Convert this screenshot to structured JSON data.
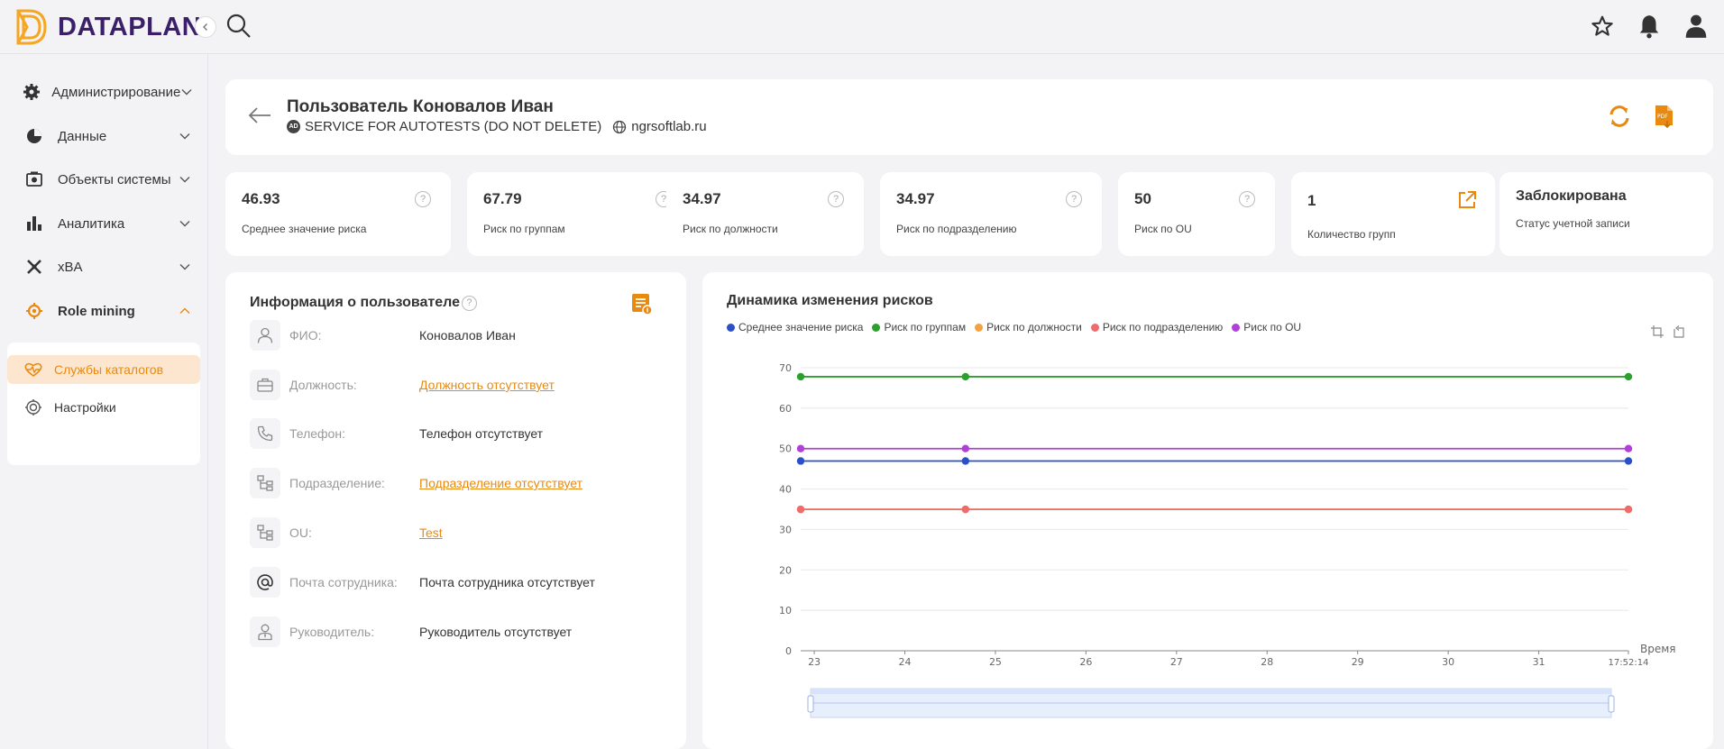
{
  "app": {
    "logo_text": "DATAPLAN"
  },
  "topbar": {
    "icons": [
      "search-icon",
      "star-icon",
      "bell-icon",
      "user-icon"
    ]
  },
  "sidebar": {
    "items": [
      {
        "label": "Администрирование",
        "icon": "gear-icon"
      },
      {
        "label": "Данные",
        "icon": "pie-icon"
      },
      {
        "label": "Объекты системы",
        "icon": "objects-icon"
      },
      {
        "label": "Аналитика",
        "icon": "bar-chart-icon"
      },
      {
        "label": "xBA",
        "icon": "xba-icon"
      },
      {
        "label": "Role mining",
        "icon": "role-mining-icon"
      }
    ],
    "submenu": [
      {
        "label": "Службы каталогов",
        "icon": "heartbeat-icon"
      },
      {
        "label": "Настройки",
        "icon": "settings-icon"
      }
    ]
  },
  "header": {
    "title": "Пользователь Коновалов Иван",
    "badge": "AD",
    "service": "SERVICE FOR AUTOTESTS (DO NOT DELETE)",
    "domain": "ngrsoftlab.ru"
  },
  "stats": [
    {
      "value": "46.93",
      "label": "Среднее значение риска"
    },
    {
      "value": "67.79",
      "label": "Риск по группам"
    },
    {
      "value": "34.97",
      "label": "Риск по должности"
    },
    {
      "value": "34.97",
      "label": "Риск по подразделению"
    },
    {
      "value": "50",
      "label": "Риск по OU"
    },
    {
      "value": "1",
      "label": "Количество групп"
    },
    {
      "value": "Заблокирована",
      "label": "Статус учетной записи"
    }
  ],
  "info": {
    "title": "Информация о пользователе",
    "help": "?",
    "rows": [
      {
        "key": "ФИО:",
        "value": "Коновалов Иван",
        "link": false,
        "icon": "person-icon"
      },
      {
        "key": "Должность:",
        "value": "Должность отсутствует",
        "link": true,
        "icon": "briefcase-icon"
      },
      {
        "key": "Телефон:",
        "value": "Телефон отсутствует",
        "link": false,
        "icon": "phone-icon"
      },
      {
        "key": "Подразделение:",
        "value": "Подразделение отсутствует",
        "link": true,
        "icon": "hierarchy-icon"
      },
      {
        "key": "OU:",
        "value": "Test",
        "link": true,
        "icon": "hierarchy-icon"
      },
      {
        "key": "Почта сотрудника:",
        "value": "Почта сотрудника отсутствует",
        "link": false,
        "icon": "at-icon"
      },
      {
        "key": "Руководитель:",
        "value": "Руководитель отсутствует",
        "link": false,
        "icon": "manager-icon"
      }
    ]
  },
  "chart_data": {
    "type": "line",
    "title": "Динамика изменения рисков",
    "xlabel": "Время",
    "ylabel": "",
    "ylim": [
      0,
      70
    ],
    "yticks": [
      0,
      10,
      20,
      30,
      40,
      50,
      60,
      70
    ],
    "xticks": [
      "23",
      "24",
      "25",
      "26",
      "27",
      "28",
      "29",
      "30",
      "31",
      "17:52:14"
    ],
    "x": [
      22.85,
      24.67,
      31.99
    ],
    "grid": true,
    "legend_position": "top-left",
    "series": [
      {
        "name": "Среднее значение риска",
        "color": "#2b4fc7",
        "values": [
          46.93,
          46.93,
          46.93
        ]
      },
      {
        "name": "Риск по группам",
        "color": "#2ca02c",
        "values": [
          67.79,
          67.79,
          67.79
        ]
      },
      {
        "name": "Риск по должности",
        "color": "#f5a142",
        "values": [
          34.97,
          34.97,
          34.97
        ]
      },
      {
        "name": "Риск по подразделению",
        "color": "#f06b6b",
        "values": [
          34.97,
          34.97,
          34.97
        ]
      },
      {
        "name": "Риск по OU",
        "color": "#b040d8",
        "values": [
          50,
          50,
          50
        ]
      }
    ]
  },
  "colors": {
    "accent": "#e88a10",
    "brand": "#3b1f6b"
  }
}
